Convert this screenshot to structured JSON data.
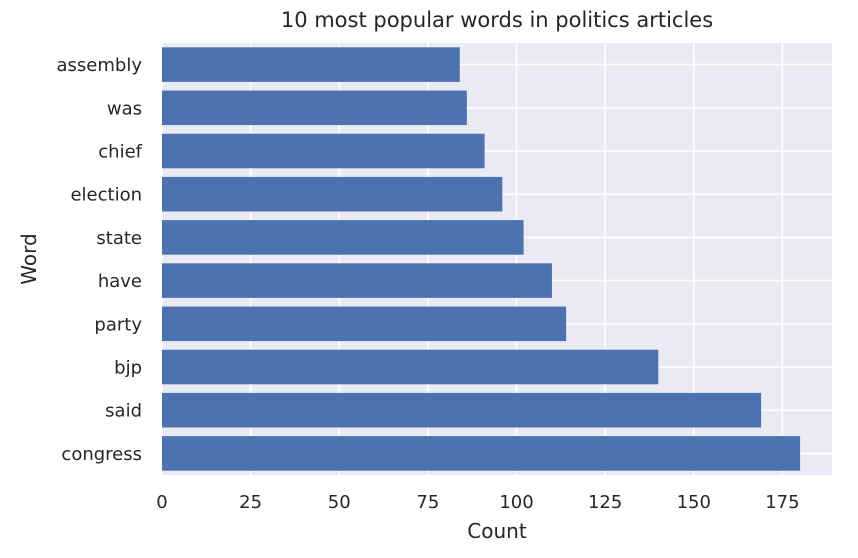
{
  "chart_data": {
    "type": "bar",
    "orientation": "horizontal",
    "title": "10 most popular words in politics articles",
    "xlabel": "Count",
    "ylabel": "Word",
    "categories": [
      "congress",
      "said",
      "bjp",
      "party",
      "have",
      "state",
      "election",
      "chief",
      "was",
      "assembly"
    ],
    "values": [
      180,
      169,
      140,
      114,
      110,
      102,
      96,
      91,
      86,
      84
    ],
    "xlim": [
      0,
      189
    ],
    "xticks": [
      0,
      25,
      50,
      75,
      100,
      125,
      150,
      175
    ],
    "grid": true,
    "bar_color": "#4c72b0",
    "background_color": "#eaeaf2",
    "grid_color": "#ffffff"
  }
}
